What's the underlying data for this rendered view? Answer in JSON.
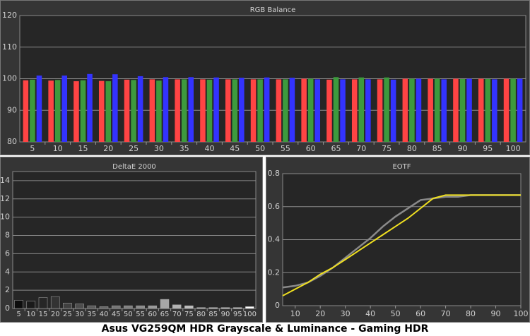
{
  "caption": "Asus VG259QM HDR Grayscale & Luminance - Gaming HDR",
  "chart_data": [
    {
      "type": "bar",
      "title": "RGB Balance",
      "categories": [
        "5",
        "10",
        "15",
        "20",
        "25",
        "30",
        "35",
        "40",
        "45",
        "50",
        "55",
        "60",
        "65",
        "70",
        "75",
        "80",
        "85",
        "90",
        "95",
        "100"
      ],
      "series": [
        {
          "color": "#ff4444",
          "values": [
            99.5,
            99.4,
            99.2,
            99.3,
            99.7,
            99.8,
            99.8,
            99.8,
            99.8,
            99.8,
            99.8,
            100,
            99.7,
            99.8,
            99.8,
            100,
            100,
            100,
            100,
            100
          ]
        },
        {
          "color": "#3d9a3d",
          "values": [
            99.7,
            99.6,
            99.5,
            99.2,
            99.6,
            99.4,
            99.8,
            99.7,
            99.8,
            99.8,
            99.8,
            100,
            100.5,
            100.4,
            100.4,
            100,
            100,
            99.9,
            99.9,
            100
          ]
        },
        {
          "color": "#3333ff",
          "values": [
            101,
            101,
            101.5,
            101.4,
            100.8,
            100.5,
            100.5,
            100.4,
            100.3,
            100.4,
            100.3,
            99.8,
            99.8,
            99.8,
            99.7,
            100,
            99.8,
            100,
            99.8,
            100
          ]
        }
      ],
      "ylim": [
        80,
        120
      ],
      "yticks": [
        80,
        90,
        100,
        110,
        120
      ],
      "grid": true
    },
    {
      "type": "bar",
      "title": "DeltaE 2000",
      "categories": [
        "5",
        "10",
        "15",
        "20",
        "25",
        "30",
        "35",
        "40",
        "45",
        "50",
        "55",
        "60",
        "65",
        "70",
        "75",
        "80",
        "85",
        "90",
        "95",
        "100"
      ],
      "values": [
        0.9,
        0.8,
        1.2,
        1.3,
        0.6,
        0.5,
        0.3,
        0.2,
        0.3,
        0.3,
        0.3,
        0.3,
        1.0,
        0.4,
        0.3,
        0.1,
        0.1,
        0.1,
        0.1,
        0.2
      ],
      "colors": [
        "#0d0d0d",
        "#1a1a1a",
        "#262626",
        "#333333",
        "#404040",
        "#4d4d4d",
        "#595959",
        "#666666",
        "#737373",
        "#808080",
        "#8c8c8c",
        "#999999",
        "#a6a6a6",
        "#b3b3b3",
        "#bfbfbf",
        "#cccccc",
        "#d9d9d9",
        "#e6e6e6",
        "#f2f2f2",
        "#ffffff"
      ],
      "ylim": [
        0,
        15
      ],
      "yticks": [
        0,
        2,
        4,
        6,
        8,
        10,
        12,
        14
      ],
      "grid": true
    },
    {
      "type": "line",
      "title": "EOTF",
      "x": [
        5,
        10,
        15,
        20,
        25,
        30,
        35,
        40,
        45,
        50,
        55,
        60,
        65,
        70,
        75,
        80,
        85,
        90,
        95,
        100
      ],
      "series": [
        {
          "color": "#8a8a8a",
          "values": [
            0.11,
            0.12,
            0.14,
            0.18,
            0.23,
            0.29,
            0.35,
            0.41,
            0.48,
            0.54,
            0.59,
            0.64,
            0.65,
            0.66,
            0.66,
            0.67,
            0.67,
            0.67,
            0.67,
            0.67
          ]
        },
        {
          "color": "#f0e020",
          "values": [
            0.06,
            0.1,
            0.14,
            0.19,
            0.23,
            0.28,
            0.33,
            0.38,
            0.43,
            0.48,
            0.53,
            0.59,
            0.65,
            0.67,
            0.67,
            0.67,
            0.67,
            0.67,
            0.67,
            0.67
          ]
        }
      ],
      "xlim": [
        5,
        100
      ],
      "xticks": [
        10,
        20,
        30,
        40,
        50,
        60,
        70,
        80,
        90,
        100
      ],
      "ylim": [
        0,
        0.8
      ],
      "yticks": [
        0,
        0.2,
        0.4,
        0.6,
        0.8
      ],
      "grid": true
    }
  ]
}
